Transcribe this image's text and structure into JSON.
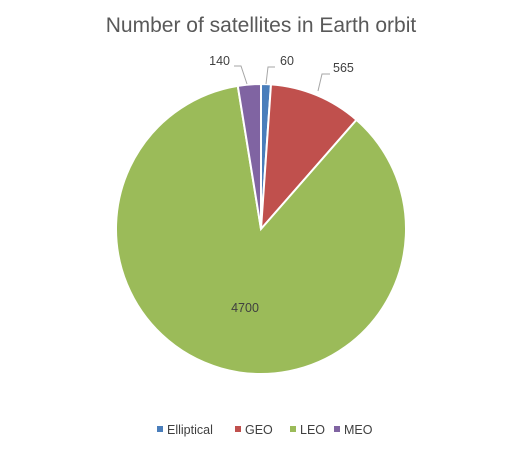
{
  "chart_data": {
    "type": "pie",
    "title": "Number of satellites in Earth orbit",
    "categories": [
      "Elliptical",
      "GEO",
      "LEO",
      "MEO"
    ],
    "values": [
      60,
      565,
      4700,
      140
    ],
    "labels": [
      "60",
      "565",
      "4700",
      "140"
    ],
    "colors": [
      "#4a7ebb",
      "#c0504d",
      "#9bbb59",
      "#8064a2"
    ],
    "legend_position": "bottom"
  }
}
